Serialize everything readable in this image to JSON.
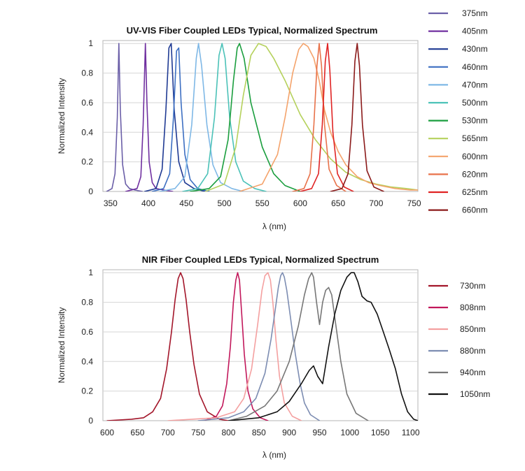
{
  "chart_data": [
    {
      "type": "line",
      "title": "UV-VIS Fiber Coupled LEDs Typical, Normalized Spectrum",
      "xlabel": "λ (nm)",
      "ylabel": "Normalized Intensity",
      "xlim": [
        340,
        755
      ],
      "ylim": [
        0,
        1.02
      ],
      "xticks": [
        350,
        400,
        450,
        500,
        550,
        600,
        650,
        700,
        750
      ],
      "yticks": [
        0,
        0.2,
        0.4,
        0.6,
        0.8,
        1
      ],
      "ytick_labels": [
        "0",
        "0.2",
        "0.4",
        "0.6",
        "0.8",
        "1"
      ],
      "grid": "horizontal",
      "legend_position": "right",
      "series": [
        {
          "name": "375nm",
          "color": "#6b5fa8",
          "x": [
            345,
            352,
            356,
            359,
            361,
            363,
            366,
            370,
            375,
            382,
            392
          ],
          "y": [
            0,
            0.02,
            0.12,
            0.5,
            1,
            0.55,
            0.18,
            0.05,
            0.02,
            0.01,
            0
          ]
        },
        {
          "name": "405nm",
          "color": "#7030a0",
          "x": [
            370,
            385,
            390,
            393,
            396,
            398,
            401,
            405,
            410,
            420,
            432
          ],
          "y": [
            0,
            0.02,
            0.1,
            0.45,
            1,
            0.6,
            0.2,
            0.06,
            0.02,
            0.01,
            0
          ]
        },
        {
          "name": "430nm",
          "color": "#1f3a93",
          "x": [
            395,
            410,
            418,
            423,
            427,
            430,
            434,
            440,
            448,
            460,
            475
          ],
          "y": [
            0,
            0.02,
            0.15,
            0.55,
            0.97,
            1,
            0.55,
            0.2,
            0.06,
            0.02,
            0
          ]
        },
        {
          "name": "460nm",
          "color": "#3d6fc2",
          "x": [
            405,
            420,
            428,
            433,
            437,
            440,
            443,
            448,
            455,
            465,
            480
          ],
          "y": [
            0,
            0.02,
            0.12,
            0.5,
            0.95,
            0.97,
            0.6,
            0.25,
            0.08,
            0.02,
            0
          ]
        },
        {
          "name": "470nm",
          "color": "#7fb8e6",
          "x": [
            415,
            435,
            448,
            457,
            463,
            466,
            470,
            477,
            485,
            495,
            510,
            525
          ],
          "y": [
            0,
            0.02,
            0.1,
            0.45,
            0.9,
            1,
            0.85,
            0.45,
            0.18,
            0.06,
            0.02,
            0
          ]
        },
        {
          "name": "500nm",
          "color": "#4cc2b8",
          "x": [
            445,
            465,
            478,
            487,
            493,
            497,
            501,
            507,
            515,
            525,
            540,
            555
          ],
          "y": [
            0,
            0.02,
            0.12,
            0.5,
            0.92,
            1,
            0.9,
            0.5,
            0.2,
            0.07,
            0.02,
            0
          ]
        },
        {
          "name": "530nm",
          "color": "#1a9e3e",
          "x": [
            455,
            480,
            495,
            505,
            512,
            517,
            520,
            526,
            535,
            550,
            565,
            580,
            600
          ],
          "y": [
            0,
            0.02,
            0.1,
            0.35,
            0.75,
            0.97,
            1,
            0.9,
            0.6,
            0.3,
            0.12,
            0.04,
            0
          ]
        },
        {
          "name": "565nm",
          "color": "#b5d15c",
          "x": [
            475,
            500,
            515,
            525,
            535,
            545,
            555,
            565,
            580,
            600,
            620,
            640,
            660,
            680,
            700,
            720,
            740,
            755
          ],
          "y": [
            0,
            0.05,
            0.3,
            0.65,
            0.92,
            1,
            0.98,
            0.9,
            0.75,
            0.52,
            0.35,
            0.22,
            0.13,
            0.08,
            0.05,
            0.03,
            0.02,
            0.01
          ]
        },
        {
          "name": "600nm",
          "color": "#f4a36b",
          "x": [
            520,
            550,
            570,
            580,
            590,
            598,
            604,
            610,
            618,
            625,
            632,
            640,
            650,
            660,
            675,
            690,
            705,
            725,
            745,
            755
          ],
          "y": [
            0,
            0.05,
            0.25,
            0.5,
            0.8,
            0.96,
            1,
            0.98,
            0.9,
            0.75,
            0.55,
            0.4,
            0.27,
            0.18,
            0.1,
            0.06,
            0.04,
            0.02,
            0.01,
            0.01
          ]
        },
        {
          "name": "620nm",
          "color": "#e8724a",
          "x": [
            590,
            605,
            613,
            618,
            622,
            625,
            628,
            632,
            638,
            648,
            660
          ],
          "y": [
            0,
            0.02,
            0.12,
            0.45,
            0.85,
            1,
            0.85,
            0.45,
            0.15,
            0.04,
            0
          ]
        },
        {
          "name": "625nm",
          "color": "#e02424",
          "x": [
            600,
            615,
            624,
            629,
            633,
            636,
            639,
            643,
            649,
            658,
            670
          ],
          "y": [
            0,
            0.02,
            0.12,
            0.45,
            0.88,
            1,
            0.82,
            0.4,
            0.12,
            0.03,
            0
          ]
        },
        {
          "name": "660nm",
          "color": "#8b1a1a",
          "x": [
            640,
            655,
            663,
            668,
            672,
            675,
            678,
            682,
            688,
            697,
            710
          ],
          "y": [
            0,
            0.02,
            0.12,
            0.45,
            0.88,
            1,
            0.85,
            0.45,
            0.14,
            0.03,
            0
          ]
        }
      ]
    },
    {
      "type": "line",
      "title": "NIR Fiber Coupled LEDs Typical, Normalized Spectrum",
      "xlabel": "λ (nm)",
      "ylabel": "Normalized Intensity",
      "xlim": [
        593,
        1112
      ],
      "ylim": [
        0,
        1.02
      ],
      "xticks": [
        600,
        650,
        700,
        750,
        800,
        850,
        900,
        950,
        1000,
        1050,
        1100
      ],
      "yticks": [
        0,
        0.2,
        0.4,
        0.6,
        0.8,
        1
      ],
      "ytick_labels": [
        "0",
        "0.2",
        "0.4",
        "0.6",
        "0.8",
        "1"
      ],
      "grid": "horizontal",
      "legend_position": "right",
      "series": [
        {
          "name": "730nm",
          "color": "#a3162a",
          "x": [
            600,
            640,
            660,
            675,
            688,
            698,
            706,
            712,
            717,
            721,
            725,
            730,
            736,
            743,
            752,
            765,
            785,
            800
          ],
          "y": [
            0,
            0.01,
            0.02,
            0.06,
            0.15,
            0.35,
            0.6,
            0.82,
            0.96,
            1,
            0.96,
            0.82,
            0.6,
            0.38,
            0.18,
            0.06,
            0.01,
            0
          ]
        },
        {
          "name": "808nm",
          "color": "#c2185b",
          "x": [
            760,
            780,
            790,
            797,
            803,
            808,
            812,
            815,
            818,
            822,
            826,
            832,
            840,
            852,
            865
          ],
          "y": [
            0,
            0.03,
            0.1,
            0.25,
            0.5,
            0.8,
            0.95,
            1,
            0.95,
            0.7,
            0.45,
            0.2,
            0.08,
            0.02,
            0
          ]
        },
        {
          "name": "850nm",
          "color": "#f4a0a0",
          "x": [
            700,
            740,
            780,
            810,
            825,
            838,
            848,
            855,
            860,
            865,
            869,
            873,
            878,
            884,
            892,
            905,
            920
          ],
          "y": [
            0,
            0.01,
            0.02,
            0.06,
            0.15,
            0.35,
            0.65,
            0.88,
            0.98,
            1,
            0.95,
            0.8,
            0.55,
            0.3,
            0.12,
            0.03,
            0
          ]
        },
        {
          "name": "880nm",
          "color": "#7d8db2",
          "x": [
            750,
            800,
            825,
            845,
            860,
            870,
            877,
            882,
            886,
            889,
            892,
            896,
            902,
            910,
            918,
            925,
            935,
            950
          ],
          "y": [
            0,
            0.02,
            0.06,
            0.15,
            0.32,
            0.55,
            0.75,
            0.9,
            0.98,
            1,
            0.97,
            0.88,
            0.7,
            0.45,
            0.25,
            0.12,
            0.04,
            0
          ]
        },
        {
          "name": "940nm",
          "color": "#777777",
          "x": [
            800,
            830,
            860,
            880,
            900,
            915,
            925,
            932,
            937,
            940,
            945,
            950,
            955,
            960,
            965,
            970,
            975,
            985,
            995,
            1010,
            1030
          ],
          "y": [
            0,
            0.03,
            0.1,
            0.2,
            0.4,
            0.64,
            0.85,
            0.96,
            1,
            0.97,
            0.8,
            0.65,
            0.8,
            0.88,
            0.9,
            0.85,
            0.7,
            0.4,
            0.18,
            0.05,
            0
          ]
        },
        {
          "name": "1050nm",
          "color": "#111111",
          "x": [
            800,
            850,
            880,
            900,
            920,
            933,
            940,
            947,
            955,
            965,
            975,
            985,
            995,
            1002,
            1007,
            1013,
            1020,
            1028,
            1035,
            1045,
            1055,
            1065,
            1075,
            1085,
            1095,
            1105,
            1112
          ],
          "y": [
            0,
            0.02,
            0.06,
            0.13,
            0.25,
            0.34,
            0.37,
            0.3,
            0.25,
            0.5,
            0.72,
            0.88,
            0.97,
            1,
            1,
            0.94,
            0.84,
            0.81,
            0.8,
            0.72,
            0.6,
            0.48,
            0.35,
            0.18,
            0.06,
            0.01,
            0
          ]
        }
      ]
    }
  ]
}
